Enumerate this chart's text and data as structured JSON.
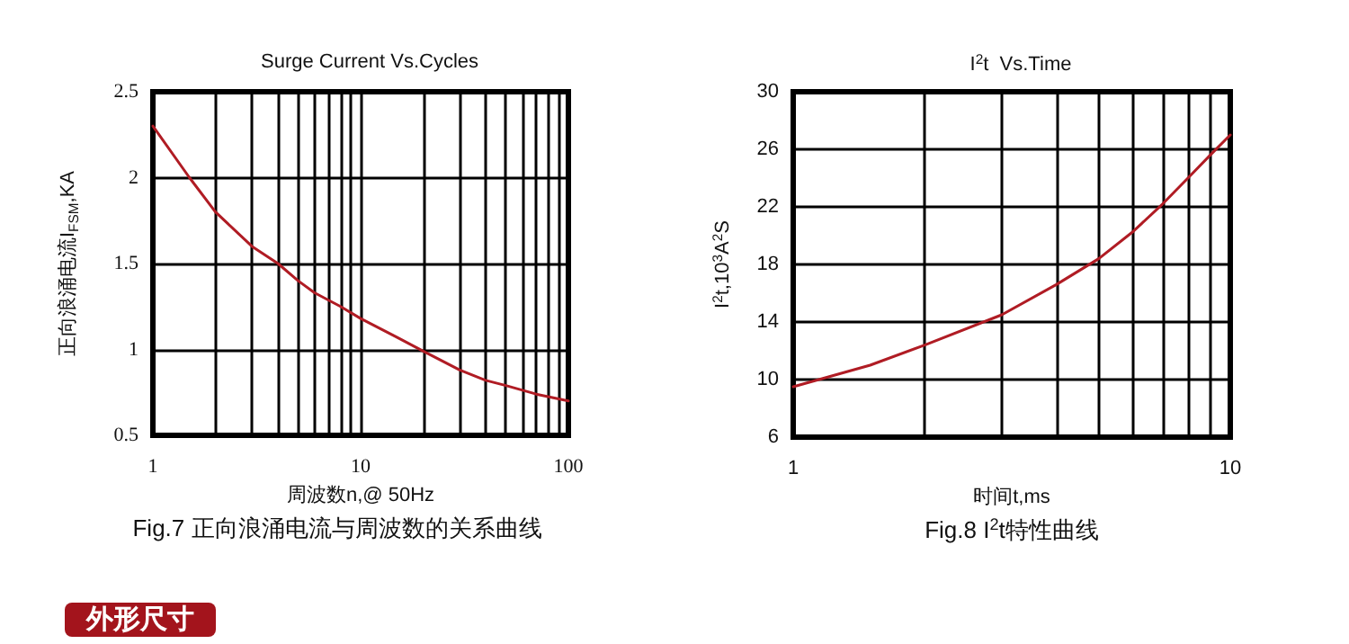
{
  "chart_data": [
    {
      "type": "line",
      "title": "Surge Current Vs.Cycles",
      "xlabel": "周波数n,@ 50Hz",
      "ylabel": "正向浪涌电流I$_{FSM}$,KA",
      "annotations": [
        "Fig.7 正向浪涌电流与周波数的关系曲线",
        "外形尺寸"
      ],
      "x": [
        1,
        1.5,
        2,
        3,
        4,
        5,
        6,
        8,
        10,
        15,
        20,
        30,
        40,
        50,
        70,
        100
      ],
      "series": [
        {
          "color": "#b01c24",
          "values": [
            2.3,
            2.0,
            1.8,
            1.6,
            1.5,
            1.4,
            1.33,
            1.25,
            1.18,
            1.07,
            0.99,
            0.88,
            0.82,
            0.79,
            0.74,
            0.7
          ]
        }
      ],
      "log": "x",
      "xlim": [
        1,
        100
      ],
      "xticks": [
        1,
        {
          "value": 2,
          "label": null
        },
        {
          "value": 3,
          "label": null
        },
        {
          "value": 4,
          "label": null
        },
        {
          "value": 5,
          "label": null
        },
        {
          "value": 6,
          "label": null
        },
        {
          "value": 7,
          "label": null
        },
        {
          "value": 8,
          "label": null
        },
        {
          "value": 9,
          "label": null
        },
        10,
        {
          "value": 20,
          "label": null
        },
        {
          "value": 30,
          "label": null
        },
        {
          "value": 40,
          "label": null
        },
        {
          "value": 50,
          "label": null
        },
        {
          "value": 60,
          "label": null
        },
        {
          "value": 70,
          "label": null
        },
        {
          "value": 80,
          "label": null
        },
        {
          "value": 90,
          "label": null
        },
        100
      ],
      "ylim": [
        0.5,
        2.5
      ],
      "yticks": [
        0.5,
        1,
        1.5,
        2,
        2.5
      ],
      "grid": true,
      "marker": "none",
      "line_style": "solid"
    },
    {
      "type": "line",
      "title": "I$^{2}$t  Vs.Time",
      "xlabel": "时间t,ms",
      "ylabel": "I$^{2}$t,10$^{3}$A$^{2}$S",
      "annotations": [
        "Fig.8 I$^{2}$t特性曲线"
      ],
      "x": [
        1,
        1.5,
        2,
        3,
        4,
        5,
        6,
        7,
        8,
        9,
        10
      ],
      "series": [
        {
          "color": "#b01c24",
          "values": [
            9.5,
            11,
            12.4,
            14.5,
            16.6,
            18.4,
            20.3,
            22.2,
            24,
            25.6,
            27
          ]
        }
      ],
      "log": "x",
      "xlim": [
        1,
        10
      ],
      "xticks": [
        1,
        {
          "value": 2,
          "label": null
        },
        {
          "value": 3,
          "label": null
        },
        {
          "value": 4,
          "label": null
        },
        {
          "value": 5,
          "label": null
        },
        {
          "value": 6,
          "label": null
        },
        {
          "value": 7,
          "label": null
        },
        {
          "value": 8,
          "label": null
        },
        {
          "value": 9,
          "label": null
        },
        10
      ],
      "ylim": [
        6,
        30
      ],
      "yticks": [
        6,
        10,
        14,
        18,
        22,
        26,
        30
      ],
      "grid": true,
      "marker": "none",
      "line_style": "solid"
    }
  ]
}
